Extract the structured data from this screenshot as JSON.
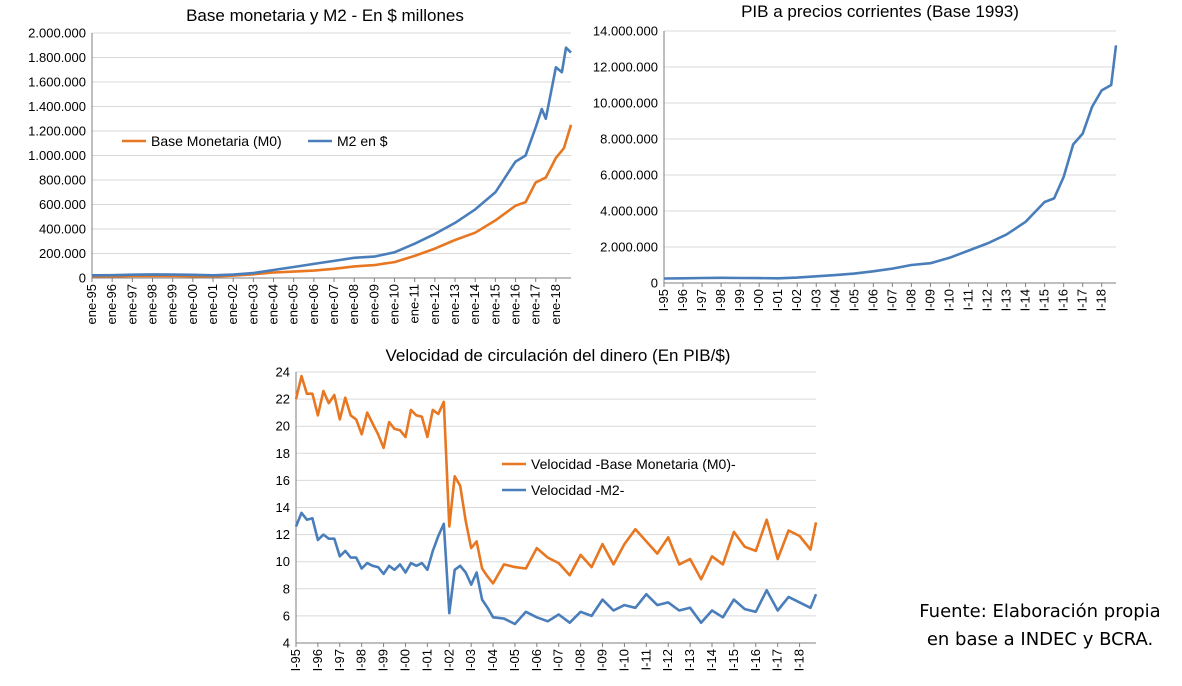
{
  "colors": {
    "orange": "#E87722",
    "blue": "#4A7EBB"
  },
  "source": {
    "line1": "Fuente: Elaboración propia",
    "line2": "en base a INDEC y BCRA."
  },
  "chart_data": [
    {
      "type": "line",
      "title": "Base monetaria y M2 - En $ millones",
      "legend_position": "center-left",
      "ylim": [
        0,
        2000000
      ],
      "yticks": [
        0,
        200000,
        400000,
        600000,
        800000,
        1000000,
        1200000,
        1400000,
        1600000,
        1800000,
        2000000
      ],
      "ytick_labels": [
        "0",
        "200.000",
        "400.000",
        "600.000",
        "800.000",
        "1.000.000",
        "1.200.000",
        "1.400.000",
        "1.600.000",
        "1.800.000",
        "2.000.000"
      ],
      "xlim": [
        1995,
        2018.75
      ],
      "xtick_labels": [
        "ene-95",
        "ene-96",
        "ene-97",
        "ene-98",
        "ene-99",
        "ene-00",
        "ene-01",
        "ene-02",
        "ene-03",
        "ene-04",
        "ene-05",
        "ene-06",
        "ene-07",
        "ene-08",
        "ene-09",
        "ene-10",
        "ene-11",
        "ene-12",
        "ene-13",
        "ene-14",
        "ene-15",
        "ene-16",
        "ene-17",
        "ene-18"
      ],
      "series": [
        {
          "name": "Base Monetaria (M0)",
          "color": "#E87722",
          "x": [
            1995,
            1996,
            1997,
            1998,
            1999,
            2000,
            2001,
            2002,
            2003,
            2004,
            2005,
            2006,
            2007,
            2008,
            2009,
            2010,
            2011,
            2012,
            2013,
            2014,
            2015,
            2016,
            2016.5,
            2017,
            2017.5,
            2018,
            2018.4,
            2018.75
          ],
          "y": [
            15000,
            14000,
            16000,
            17000,
            16000,
            15000,
            12000,
            20000,
            30000,
            45000,
            52000,
            60000,
            75000,
            95000,
            105000,
            130000,
            180000,
            240000,
            310000,
            370000,
            470000,
            590000,
            620000,
            780000,
            820000,
            980000,
            1060000,
            1250000
          ]
        },
        {
          "name": "M2 en $",
          "color": "#4A7EBB",
          "x": [
            1995,
            1996,
            1997,
            1998,
            1999,
            2000,
            2001,
            2002,
            2003,
            2004,
            2005,
            2006,
            2007,
            2008,
            2009,
            2010,
            2011,
            2012,
            2013,
            2014,
            2015,
            2016,
            2016.5,
            2017,
            2017.3,
            2017.5,
            2018,
            2018.3,
            2018.5,
            2018.75
          ],
          "y": [
            22000,
            23000,
            27000,
            29000,
            28000,
            26000,
            22000,
            28000,
            40000,
            65000,
            90000,
            115000,
            140000,
            165000,
            175000,
            210000,
            280000,
            360000,
            450000,
            560000,
            700000,
            950000,
            1000000,
            1230000,
            1380000,
            1300000,
            1720000,
            1680000,
            1880000,
            1840000
          ]
        }
      ]
    },
    {
      "type": "line",
      "title": "PIB a precios corrientes (Base 1993)",
      "ylim": [
        0,
        14000000
      ],
      "yticks": [
        0,
        2000000,
        4000000,
        6000000,
        8000000,
        10000000,
        12000000,
        14000000
      ],
      "ytick_labels": [
        "0",
        "2.000.000",
        "4.000.000",
        "6.000.000",
        "8.000.000",
        "10.000.000",
        "12.000.000",
        "14.000.000"
      ],
      "xlim": [
        1995,
        2018.75
      ],
      "xtick_labels": [
        "I-95",
        "I-96",
        "I-97",
        "I-98",
        "I-99",
        "I-00",
        "I-01",
        "I-02",
        "I-03",
        "I-04",
        "I-05",
        "I-06",
        "I-07",
        "I-08",
        "I-09",
        "I-10",
        "I-11",
        "I-12",
        "I-13",
        "I-14",
        "I-15",
        "I-16",
        "I-17",
        "I-18"
      ],
      "series": [
        {
          "name": "",
          "color": "#4A7EBB",
          "x": [
            1995,
            1996,
            1997,
            1998,
            1999,
            2000,
            2001,
            2002,
            2003,
            2004,
            2005,
            2006,
            2007,
            2008,
            2009,
            2010,
            2011,
            2012,
            2013,
            2014,
            2015,
            2015.5,
            2016,
            2016.5,
            2017,
            2017.5,
            2018,
            2018.5,
            2018.75
          ],
          "y": [
            250000,
            260000,
            280000,
            290000,
            280000,
            275000,
            260000,
            300000,
            370000,
            440000,
            520000,
            650000,
            800000,
            1000000,
            1100000,
            1400000,
            1800000,
            2200000,
            2700000,
            3400000,
            4500000,
            4700000,
            5900000,
            7700000,
            8300000,
            9800000,
            10700000,
            11000000,
            13200000
          ]
        }
      ]
    },
    {
      "type": "line",
      "title": "Velocidad de circulación del dinero (En PIB/$)",
      "legend_position": "center-right",
      "ylim": [
        4,
        24
      ],
      "yticks": [
        4,
        6,
        8,
        10,
        12,
        14,
        16,
        18,
        20,
        22,
        24
      ],
      "ytick_labels": [
        "4",
        "6",
        "8",
        "10",
        "12",
        "14",
        "16",
        "18",
        "20",
        "22",
        "24"
      ],
      "xlim": [
        1995,
        2018.75
      ],
      "xtick_labels": [
        "I-95",
        "I-96",
        "I-97",
        "I-98",
        "I-99",
        "I-00",
        "I-01",
        "I-02",
        "I-03",
        "I-04",
        "I-05",
        "I-06",
        "I-07",
        "I-08",
        "I-09",
        "I-10",
        "I-11",
        "I-12",
        "I-13",
        "I-14",
        "I-15",
        "I-16",
        "I-17",
        "I-18"
      ],
      "series": [
        {
          "name": "Velocidad -Base Monetaria (M0)-",
          "color": "#E87722",
          "x": [
            1995,
            1995.25,
            1995.5,
            1995.75,
            1996,
            1996.25,
            1996.5,
            1996.75,
            1997,
            1997.25,
            1997.5,
            1997.75,
            1998,
            1998.25,
            1998.5,
            1998.75,
            1999,
            1999.25,
            1999.5,
            1999.75,
            2000,
            2000.25,
            2000.5,
            2000.75,
            2001,
            2001.25,
            2001.5,
            2001.75,
            2002,
            2002.25,
            2002.5,
            2002.75,
            2003,
            2003.25,
            2003.5,
            2003.75,
            2004,
            2004.5,
            2005,
            2005.5,
            2006,
            2006.5,
            2007,
            2007.5,
            2008,
            2008.5,
            2009,
            2009.5,
            2010,
            2010.5,
            2011,
            2011.5,
            2012,
            2012.5,
            2013,
            2013.5,
            2014,
            2014.5,
            2015,
            2015.5,
            2016,
            2016.5,
            2017,
            2017.5,
            2018,
            2018.5,
            2018.75
          ],
          "y": [
            22.0,
            23.7,
            22.4,
            22.4,
            20.8,
            22.6,
            21.7,
            22.3,
            20.5,
            22.1,
            20.8,
            20.5,
            19.4,
            21.0,
            20.2,
            19.4,
            18.4,
            20.3,
            19.8,
            19.7,
            19.2,
            21.2,
            20.8,
            20.7,
            19.2,
            21.2,
            20.9,
            21.8,
            12.6,
            16.3,
            15.6,
            13.0,
            11.0,
            11.5,
            9.5,
            8.9,
            8.4,
            9.8,
            9.6,
            9.5,
            11.0,
            10.3,
            9.9,
            9.0,
            10.5,
            9.6,
            11.3,
            9.8,
            11.3,
            12.4,
            11.5,
            10.6,
            11.8,
            9.8,
            10.2,
            8.7,
            10.4,
            9.8,
            12.2,
            11.1,
            10.8,
            13.1,
            10.2,
            12.3,
            11.9,
            10.9,
            12.9
          ]
        },
        {
          "name": "Velocidad -M2-",
          "color": "#4A7EBB",
          "x": [
            1995,
            1995.25,
            1995.5,
            1995.75,
            1996,
            1996.25,
            1996.5,
            1996.75,
            1997,
            1997.25,
            1997.5,
            1997.75,
            1998,
            1998.25,
            1998.5,
            1998.75,
            1999,
            1999.25,
            1999.5,
            1999.75,
            2000,
            2000.25,
            2000.5,
            2000.75,
            2001,
            2001.25,
            2001.5,
            2001.75,
            2002,
            2002.25,
            2002.5,
            2002.75,
            2003,
            2003.25,
            2003.5,
            2003.75,
            2004,
            2004.5,
            2005,
            2005.5,
            2006,
            2006.5,
            2007,
            2007.5,
            2008,
            2008.5,
            2009,
            2009.5,
            2010,
            2010.5,
            2011,
            2011.5,
            2012,
            2012.5,
            2013,
            2013.5,
            2014,
            2014.5,
            2015,
            2015.5,
            2016,
            2016.5,
            2017,
            2017.5,
            2018,
            2018.5,
            2018.75
          ],
          "y": [
            12.6,
            13.6,
            13.1,
            13.2,
            11.6,
            12.0,
            11.7,
            11.7,
            10.4,
            10.8,
            10.3,
            10.3,
            9.5,
            9.9,
            9.7,
            9.6,
            9.1,
            9.7,
            9.4,
            9.8,
            9.2,
            9.9,
            9.7,
            9.9,
            9.4,
            10.8,
            11.9,
            12.8,
            6.2,
            9.4,
            9.7,
            9.2,
            8.3,
            9.2,
            7.2,
            6.6,
            5.9,
            5.8,
            5.4,
            6.3,
            5.9,
            5.6,
            6.1,
            5.5,
            6.3,
            6.0,
            7.2,
            6.4,
            6.8,
            6.6,
            7.6,
            6.8,
            7.0,
            6.4,
            6.6,
            5.5,
            6.4,
            5.9,
            7.2,
            6.5,
            6.3,
            7.9,
            6.4,
            7.4,
            7.0,
            6.6,
            7.6
          ]
        }
      ]
    }
  ]
}
